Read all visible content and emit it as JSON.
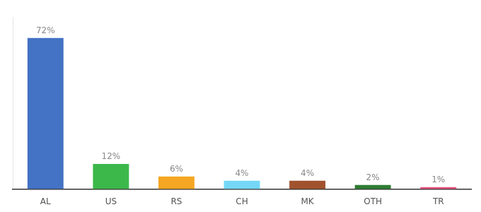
{
  "chart_data": {
    "type": "bar",
    "categories": [
      "AL",
      "US",
      "RS",
      "CH",
      "MK",
      "OTH",
      "TR"
    ],
    "values": [
      72,
      12,
      6,
      4,
      4,
      2,
      1
    ],
    "value_labels": [
      "72%",
      "12%",
      "6%",
      "4%",
      "4%",
      "2%",
      "1%"
    ],
    "colors": [
      "#4472c4",
      "#3cb84a",
      "#f5a623",
      "#74d7f7",
      "#a0522d",
      "#2e7d32",
      "#e75480"
    ],
    "ylim": [
      0,
      82
    ],
    "grid": false,
    "data_labels": true,
    "tick_labels": "x"
  }
}
